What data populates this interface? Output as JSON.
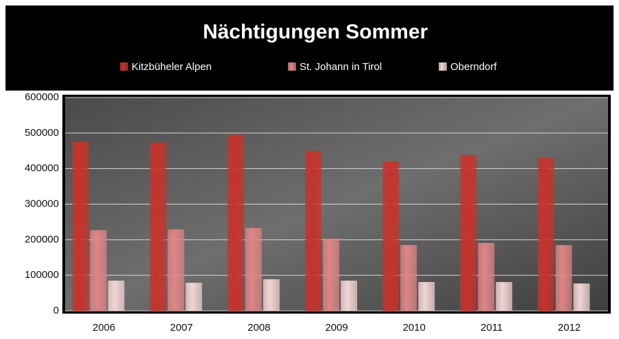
{
  "chart_data": {
    "type": "bar",
    "title": "Nächtigungen Sommer",
    "categories": [
      "2006",
      "2007",
      "2008",
      "2009",
      "2010",
      "2011",
      "2012"
    ],
    "series": [
      {
        "name": "Kitzbüheler Alpen",
        "color": "#c8322b",
        "values": [
          475000,
          473000,
          495000,
          450000,
          420000,
          438000,
          430000
        ]
      },
      {
        "name": "St. Johann in Tirol",
        "color": "#de8585",
        "values": [
          227000,
          229000,
          233000,
          203000,
          185000,
          191000,
          185000
        ]
      },
      {
        "name": "Oberndorf",
        "color": "#f2d4d4",
        "values": [
          85000,
          79000,
          89000,
          85000,
          81000,
          81000,
          77000
        ]
      }
    ],
    "ylim": [
      0,
      600000
    ],
    "yticks": [
      0,
      100000,
      200000,
      300000,
      400000,
      500000,
      600000
    ],
    "grid": true,
    "legend": "top"
  }
}
